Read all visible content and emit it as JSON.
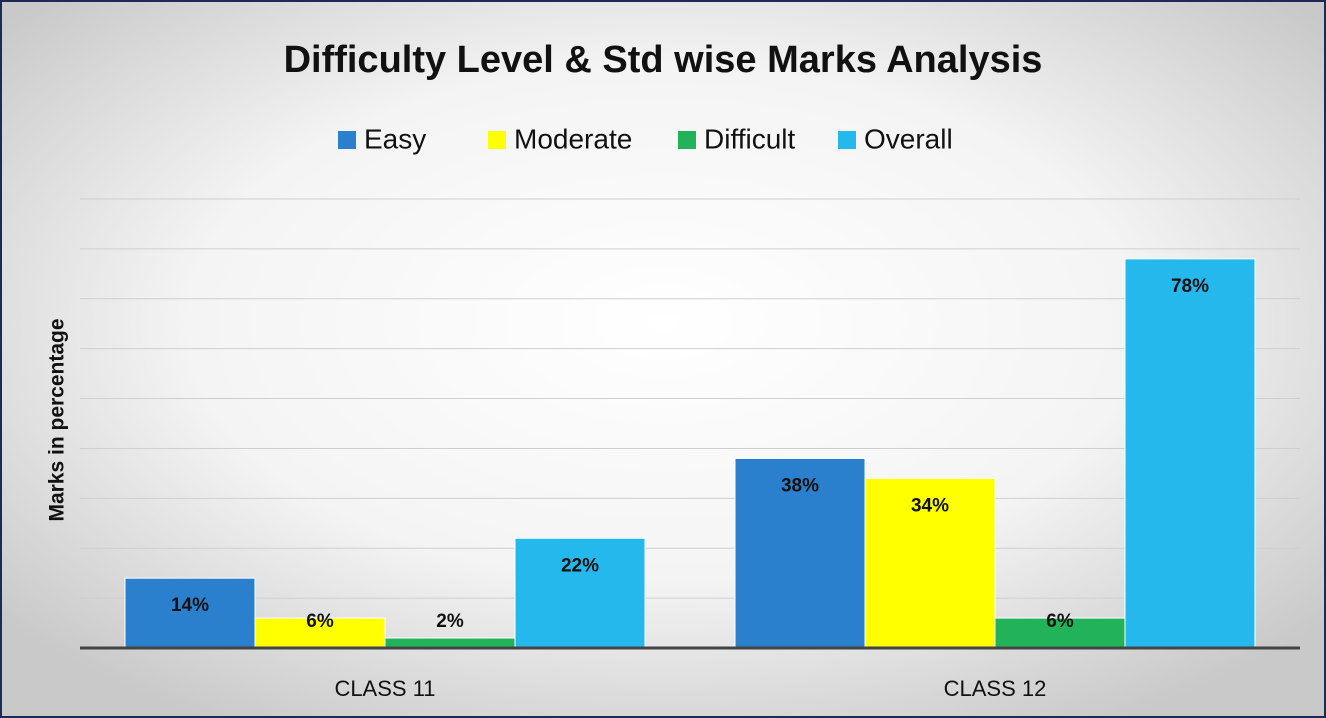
{
  "chart_data": {
    "type": "bar",
    "title": "Difficulty Level & Std wise Marks Analysis",
    "y_label": "Marks in percentage",
    "categories": [
      "CLASS 11",
      "CLASS 12"
    ],
    "series": [
      {
        "name": "Easy",
        "color": "#2a80cc",
        "values": [
          14,
          38
        ],
        "value_labels": [
          "14%",
          "38%"
        ]
      },
      {
        "name": "Moderate",
        "color": "#ffff00",
        "values": [
          6,
          34
        ],
        "value_labels": [
          "6%",
          "34%"
        ]
      },
      {
        "name": "Difficult",
        "color": "#22b35a",
        "values": [
          2,
          6
        ],
        "value_labels": [
          "2%",
          "6%"
        ]
      },
      {
        "name": "Overall",
        "color": "#24b8ec",
        "values": [
          22,
          78
        ],
        "value_labels": [
          "22%",
          "78%"
        ]
      }
    ],
    "ylim": [
      0,
      90
    ],
    "yticks": [
      0,
      10,
      20,
      30,
      40,
      50,
      60,
      70,
      80,
      90
    ],
    "grid": true,
    "legend": "top"
  }
}
